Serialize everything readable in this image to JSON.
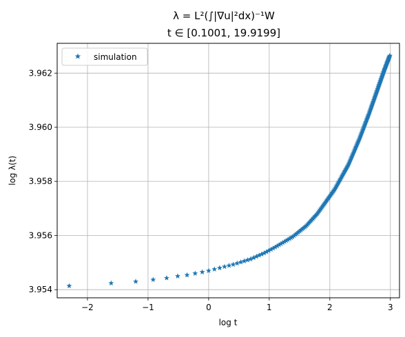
{
  "chart_data": {
    "type": "scatter",
    "title_line1": "λ = L²(∫|∇u|²dx)⁻¹W",
    "title_line2": "t ∈ [0.1001, 19.9199]",
    "xlabel": "log t",
    "ylabel": "log λ(t)",
    "xlim": [
      -2.5,
      3.15
    ],
    "ylim": [
      3.9537,
      3.9631
    ],
    "xticks": [
      -2,
      -1,
      0,
      1,
      2,
      3
    ],
    "xtick_labels": [
      "−2",
      "−1",
      "0",
      "1",
      "2",
      "3"
    ],
    "yticks": [
      3.954,
      3.956,
      3.958,
      3.96,
      3.962
    ],
    "ytick_labels": [
      "3.954",
      "3.956",
      "3.958",
      "3.960",
      "3.962"
    ],
    "grid": true,
    "legend_position": "upper-left",
    "series": [
      {
        "name": "simulation",
        "marker": "star",
        "color": "#1f77b4",
        "curve": {
          "x_min": -2.3016,
          "x_max": 2.9917,
          "t_min": 0.1001,
          "t_max": 19.9199,
          "t_step": 0.1,
          "y_at_t_min": 3.95414,
          "y_at_t_max": 3.96265
        },
        "points": [
          [
            -2.302,
            3.95414
          ],
          [
            -1.609,
            3.95424
          ],
          [
            -1.204,
            3.9543
          ],
          [
            -0.916,
            3.95437
          ],
          [
            -0.693,
            3.95443
          ],
          [
            -0.511,
            3.9545
          ],
          [
            -0.357,
            3.95454
          ],
          [
            -0.223,
            3.9546
          ],
          [
            -0.105,
            3.95465
          ],
          [
            0.0,
            3.9547
          ],
          [
            0.405,
            3.95493
          ],
          [
            0.693,
            3.95513
          ],
          [
            0.916,
            3.95535
          ],
          [
            1.099,
            3.95557
          ],
          [
            1.386,
            3.95595
          ],
          [
            1.609,
            3.95635
          ],
          [
            1.792,
            3.9568
          ],
          [
            2.079,
            3.9577
          ],
          [
            2.303,
            3.9586
          ],
          [
            2.485,
            3.95955
          ],
          [
            2.639,
            3.96045
          ],
          [
            2.773,
            3.9613
          ],
          [
            2.89,
            3.96205
          ],
          [
            2.992,
            3.96265
          ]
        ]
      }
    ]
  }
}
